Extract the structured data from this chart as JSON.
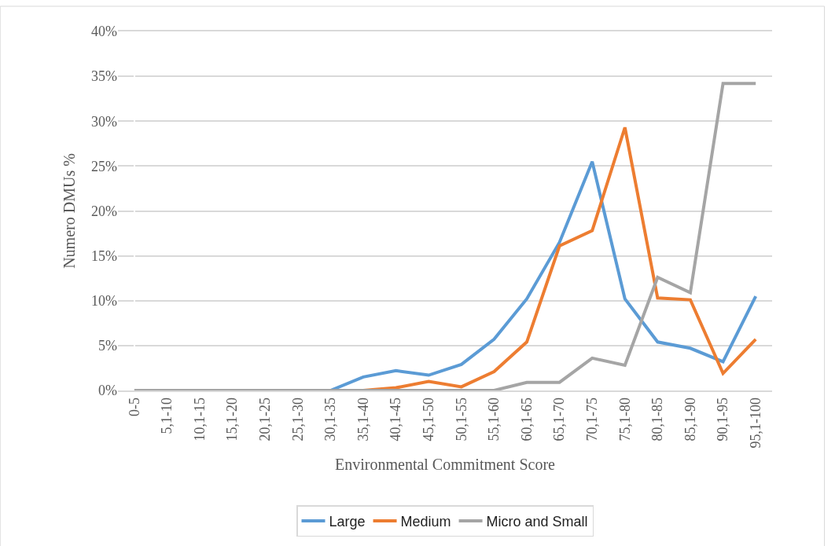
{
  "chart_data": {
    "type": "line",
    "xlabel": "Environmental Commitment Score",
    "ylabel": "Numero DMUs %",
    "categories": [
      "0-5",
      "5,1-10",
      "10,1-15",
      "15,1-20",
      "20,1-25",
      "25,1-30",
      "30,1-35",
      "35,1-40",
      "40,1-45",
      "45,1-50",
      "50,1-55",
      "55,1-60",
      "60,1-65",
      "65,1-70",
      "70,1-75",
      "75,1-80",
      "80,1-85",
      "85,1-90",
      "90,1-95",
      "95,1-100"
    ],
    "series": [
      {
        "name": "Large",
        "color": "#5b9bd5",
        "values": [
          null,
          null,
          null,
          null,
          null,
          0,
          0,
          1.5,
          2.2,
          1.7,
          2.9,
          5.7,
          10.2,
          16.5,
          25.5,
          10.2,
          5.4,
          4.7,
          3.2,
          10.5
        ]
      },
      {
        "name": "Medium",
        "color": "#ed7d31",
        "values": [
          null,
          null,
          null,
          null,
          null,
          null,
          0,
          0,
          0.3,
          1.0,
          0.4,
          2.1,
          5.4,
          16.1,
          17.8,
          29.3,
          10.3,
          10.1,
          1.9,
          5.7
        ]
      },
      {
        "name": "Micro and Small",
        "color": "#a5a5a5",
        "values": [
          0,
          0,
          0,
          0,
          0,
          0,
          0,
          0,
          0,
          0,
          0,
          0,
          0.9,
          0.9,
          3.6,
          2.8,
          12.6,
          10.9,
          34.2,
          34.2
        ]
      }
    ],
    "ylim": [
      0,
      40
    ],
    "yticks": [
      {
        "value": 0,
        "label": "0%"
      },
      {
        "value": 5,
        "label": "5%"
      },
      {
        "value": 10,
        "label": "10%"
      },
      {
        "value": 15,
        "label": "15%"
      },
      {
        "value": 20,
        "label": "20%"
      },
      {
        "value": 25,
        "label": "25%"
      },
      {
        "value": 30,
        "label": "30%"
      },
      {
        "value": 35,
        "label": "35%"
      },
      {
        "value": 40,
        "label": "40%"
      }
    ],
    "grid": "y",
    "legend": "bottom",
    "marker": "none",
    "line_style": "solid"
  }
}
